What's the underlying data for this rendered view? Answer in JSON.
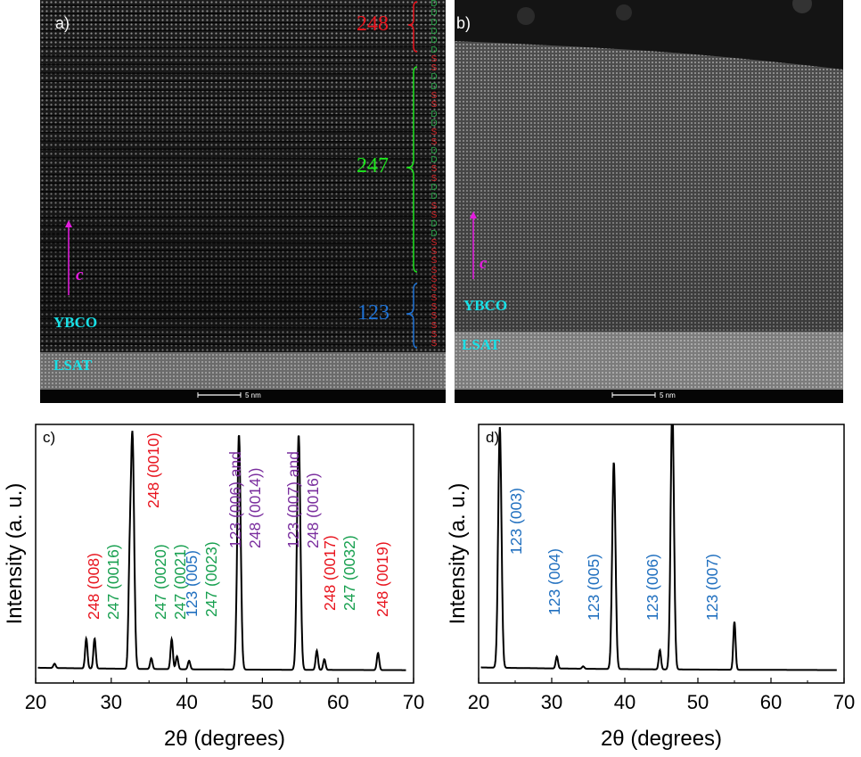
{
  "panels": {
    "a": {
      "label": "a)"
    },
    "b": {
      "label": "b)"
    },
    "c": {
      "label": "c)"
    },
    "d": {
      "label": "d)"
    }
  },
  "tem": {
    "ybco_label": "YBCO",
    "lsat_label": "LSAT",
    "c_axis_label": "c",
    "scale_label": "5 nm",
    "phase_248": "248",
    "phase_247": "247",
    "phase_123": "123",
    "stacking_sequence": "DDDDDDSSDDSSDDSSDDSSDDSSDDSSSSSSSSSSSS",
    "colors": {
      "phase_248": "#e8141e",
      "phase_247": "#1ee61e",
      "phase_123": "#1f73d6",
      "D": "#2aa84a",
      "S": "#e0262b"
    }
  },
  "chart_data": [
    {
      "panel": "c",
      "type": "line",
      "xlabel": "2θ (degrees)",
      "ylabel": "Intensity (a. u.)",
      "xlim": [
        20,
        70
      ],
      "xticks": [
        20,
        30,
        40,
        50,
        60,
        70
      ],
      "peaks": [
        {
          "x": 22.5,
          "y": 0.02
        },
        {
          "x": 26.7,
          "y": 0.14
        },
        {
          "x": 27.8,
          "y": 0.14
        },
        {
          "x": 32.4,
          "y": 0.33
        },
        {
          "x": 32.8,
          "y": 1.1
        },
        {
          "x": 35.3,
          "y": 0.05
        },
        {
          "x": 38.0,
          "y": 0.14
        },
        {
          "x": 38.7,
          "y": 0.06
        },
        {
          "x": 40.3,
          "y": 0.04
        },
        {
          "x": 46.9,
          "y": 1.1
        },
        {
          "x": 54.8,
          "y": 1.1
        },
        {
          "x": 57.2,
          "y": 0.09
        },
        {
          "x": 58.2,
          "y": 0.05
        },
        {
          "x": 65.3,
          "y": 0.08
        }
      ],
      "annotations": [
        {
          "lines": [
            {
              "text": "248 (008)",
              "color": "#e8141e"
            },
            {
              "text": "247 (0016)",
              "color": "#18a050"
            }
          ]
        },
        {
          "lines": [
            {
              "text": "248 (0010)",
              "color": "#e8141e"
            }
          ]
        },
        {
          "lines": [
            {
              "text": "247 (0020)",
              "color": "#18a050"
            },
            {
              "text": "247 (0021)",
              "color": "#18a050"
            }
          ]
        },
        {
          "lines": [
            {
              "text": "123 (005)",
              "color": "#1f6fbf"
            },
            {
              "text": "247 (0023)",
              "color": "#18a050"
            }
          ]
        },
        {
          "lines": [
            {
              "text": "123 (006) and",
              "color": "#7a2e9e"
            },
            {
              "text": "248 (0014))",
              "color": "#7a2e9e"
            }
          ]
        },
        {
          "lines": [
            {
              "text": "123 (007) and",
              "color": "#7a2e9e"
            },
            {
              "text": "248 (0016)",
              "color": "#7a2e9e"
            }
          ]
        },
        {
          "lines": [
            {
              "text": "248 (0017)",
              "color": "#e8141e"
            },
            {
              "text": "247 (0032)",
              "color": "#18a050"
            }
          ]
        },
        {
          "lines": [
            {
              "text": "248 (0019)",
              "color": "#e8141e"
            }
          ]
        }
      ]
    },
    {
      "panel": "d",
      "type": "line",
      "xlabel": "2θ (degrees)",
      "ylabel": "Intensity (a. u.)",
      "xlim": [
        20,
        70
      ],
      "xticks": [
        20,
        30,
        40,
        50,
        60,
        70
      ],
      "peaks": [
        {
          "x": 22.9,
          "y": 1.0
        },
        {
          "x": 30.7,
          "y": 0.05
        },
        {
          "x": 34.3,
          "y": 0.01
        },
        {
          "x": 38.5,
          "y": 0.86
        },
        {
          "x": 44.8,
          "y": 0.08
        },
        {
          "x": 46.5,
          "y": 1.1
        },
        {
          "x": 55.0,
          "y": 0.2
        }
      ],
      "annotations": [
        {
          "lines": [
            {
              "text": "123 (003)",
              "color": "#1f6fbf"
            }
          ]
        },
        {
          "lines": [
            {
              "text": "123 (004)",
              "color": "#1f6fbf"
            }
          ]
        },
        {
          "lines": [
            {
              "text": "123 (005)",
              "color": "#1f6fbf"
            }
          ]
        },
        {
          "lines": [
            {
              "text": "123 (006)",
              "color": "#1f6fbf"
            }
          ]
        },
        {
          "lines": [
            {
              "text": "123 (007)",
              "color": "#1f6fbf"
            }
          ]
        }
      ]
    }
  ]
}
